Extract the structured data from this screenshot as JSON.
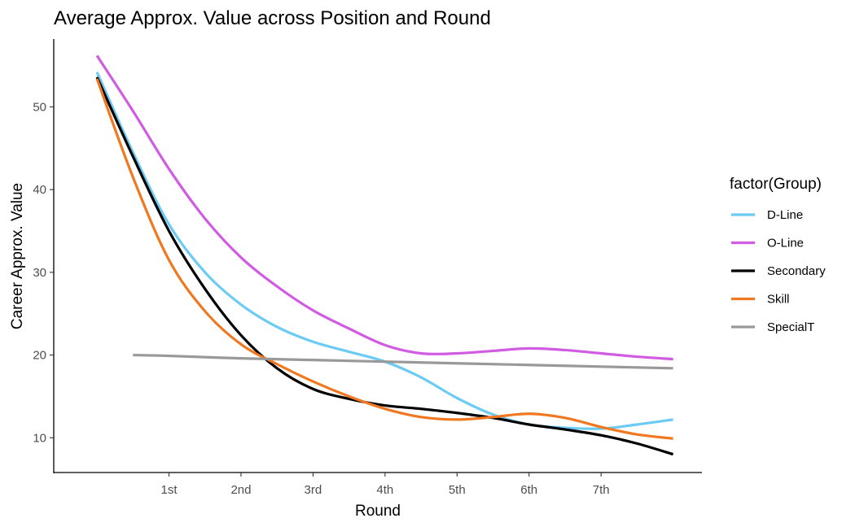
{
  "chart_data": {
    "type": "line",
    "title": "Average Approx. Value across Position and Round",
    "xlabel": "Round",
    "ylabel": "Career Approx. Value",
    "x_ticks": [
      {
        "value": 1,
        "label": "1st"
      },
      {
        "value": 2,
        "label": "2nd"
      },
      {
        "value": 3,
        "label": "3rd"
      },
      {
        "value": 4,
        "label": "4th"
      },
      {
        "value": 5,
        "label": "5th"
      },
      {
        "value": 6,
        "label": "6th"
      },
      {
        "value": 7,
        "label": "7th"
      }
    ],
    "y_ticks": [
      10,
      20,
      30,
      40,
      50
    ],
    "xlim": [
      -0.6,
      8.4
    ],
    "ylim": [
      5.7,
      58.2
    ],
    "grid": false,
    "legend": {
      "title": "factor(Group)",
      "position": "right"
    },
    "series": [
      {
        "name": "D-Line",
        "color": "#6ccbf4",
        "x": [
          0,
          0.5,
          1,
          1.5,
          2,
          2.5,
          3,
          3.5,
          4,
          4.5,
          5,
          5.5,
          6,
          6.5,
          7,
          7.5,
          8
        ],
        "y": [
          54.2,
          44.5,
          35.8,
          30.0,
          26.1,
          23.4,
          21.6,
          20.4,
          19.2,
          17.3,
          14.8,
          12.8,
          11.6,
          11.2,
          11.1,
          11.6,
          12.2
        ]
      },
      {
        "name": "O-Line",
        "color": "#d25be3",
        "x": [
          0,
          0.5,
          1,
          1.5,
          2,
          2.5,
          3,
          3.5,
          4,
          4.5,
          5,
          5.5,
          6,
          6.5,
          7,
          7.5,
          8
        ],
        "y": [
          56.2,
          49.5,
          42.5,
          36.5,
          31.8,
          28.3,
          25.4,
          23.2,
          21.2,
          20.2,
          20.2,
          20.5,
          20.8,
          20.6,
          20.2,
          19.8,
          19.5
        ]
      },
      {
        "name": "Secondary",
        "color": "#000000",
        "x": [
          0,
          0.5,
          1,
          1.5,
          2,
          2.5,
          3,
          3.5,
          4,
          4.5,
          5,
          5.5,
          6,
          6.5,
          7,
          7.5,
          8
        ],
        "y": [
          53.6,
          44.0,
          35.0,
          28.0,
          22.4,
          18.4,
          15.9,
          14.7,
          13.9,
          13.5,
          13.0,
          12.4,
          11.6,
          11.0,
          10.3,
          9.3,
          8.0
        ]
      },
      {
        "name": "Skill",
        "color": "#f07820",
        "x": [
          0,
          0.5,
          1,
          1.5,
          2,
          2.5,
          3,
          3.5,
          4,
          4.5,
          5,
          5.5,
          6,
          6.5,
          7,
          7.5,
          8
        ],
        "y": [
          53.4,
          41.5,
          31.5,
          25.3,
          21.3,
          18.9,
          16.8,
          15.0,
          13.5,
          12.5,
          12.2,
          12.5,
          12.9,
          12.4,
          11.3,
          10.4,
          9.9
        ]
      },
      {
        "name": "SpecialT",
        "color": "#999999",
        "x": [
          0.5,
          1,
          2,
          3,
          4,
          5,
          6,
          7,
          8
        ],
        "y": [
          20.0,
          19.9,
          19.6,
          19.4,
          19.2,
          19.0,
          18.8,
          18.6,
          18.4
        ]
      }
    ]
  }
}
